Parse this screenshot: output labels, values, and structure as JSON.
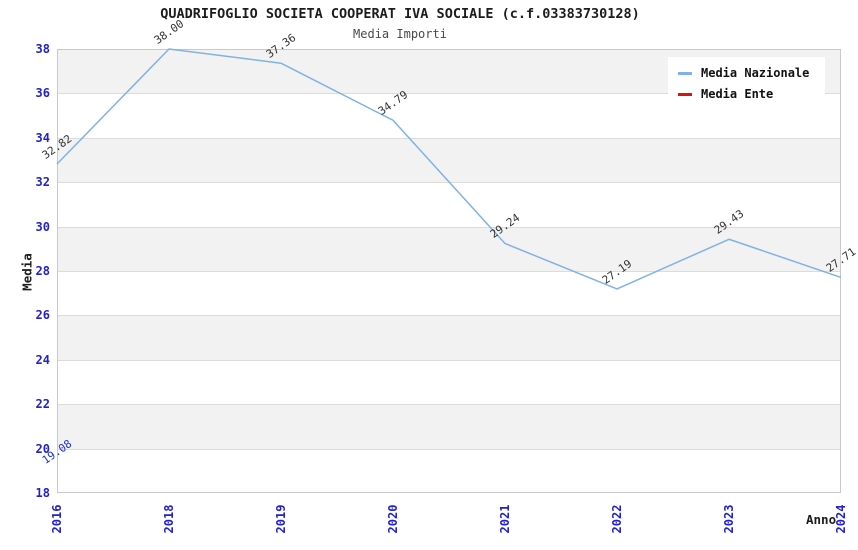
{
  "title": "QUADRIFOGLIO SOCIETA COOPERAT IVA SOCIALE (c.f.03383730128)",
  "subtitle": "Media Importi",
  "axes": {
    "y_label": "Media",
    "x_label": "Anno",
    "y_ticks": [
      38,
      36,
      34,
      32,
      30,
      28,
      26,
      24,
      22,
      20,
      18
    ],
    "x_ticks": [
      "2016",
      "2018",
      "2019",
      "2020",
      "2021",
      "2022",
      "2023",
      "2024"
    ]
  },
  "legend": {
    "position": "upper-right",
    "items": [
      {
        "label": "Media Nazionale",
        "color": "#7fb2e5"
      },
      {
        "label": "Media Ente",
        "color": "#e01010"
      }
    ]
  },
  "colors": {
    "tick_label_blue": "#2222cc",
    "band_gray": "#f2f2f2",
    "gridline": "#dcdcdc",
    "nazionale_line": "#7fb2e5",
    "ente_line": "#e01010",
    "data_label": "#333333"
  },
  "chart_data": {
    "type": "line",
    "title": "QUADRIFOGLIO SOCIETA COOPERAT IVA SOCIALE (c.f.03383730128)",
    "subtitle": "Media Importi",
    "xlabel": "Anno",
    "ylabel": "Media",
    "ylim": [
      18,
      38
    ],
    "y_tick_step": 2,
    "grid": "horizontal gridlines every 2 units over alternating gray/white bands",
    "legend_position": "upper right",
    "categories": [
      "2016",
      "2018",
      "2019",
      "2020",
      "2021",
      "2022",
      "2023",
      "2024"
    ],
    "series": [
      {
        "name": "Media Nazionale",
        "color": "#7fb2e5",
        "label_color": "#333333",
        "values": [
          32.82,
          38.0,
          37.36,
          34.79,
          29.24,
          27.19,
          29.43,
          27.71
        ]
      },
      {
        "name": "Media Ente",
        "color": "#e01010",
        "label_color": "#2233cc",
        "values": [
          19.08,
          null,
          null,
          null,
          null,
          null,
          null,
          null
        ]
      }
    ]
  }
}
